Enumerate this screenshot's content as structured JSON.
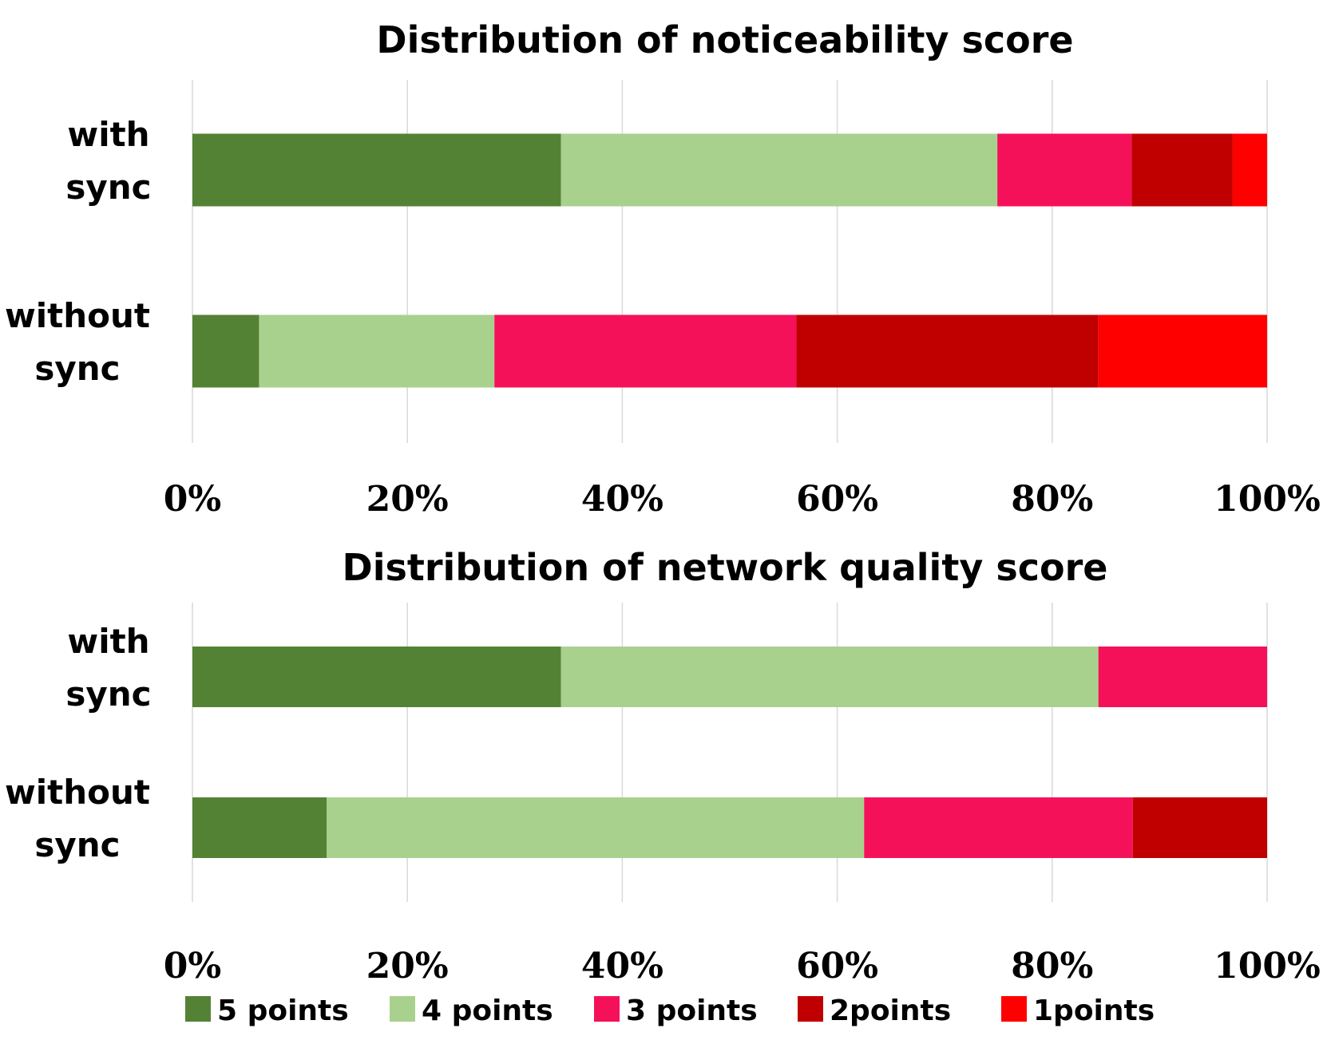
{
  "chart_data": [
    {
      "type": "bar",
      "orientation": "horizontal",
      "stacked": "percent",
      "title": "Distribution of noticeability score",
      "categories": [
        "with sync",
        "without sync"
      ],
      "series": [
        {
          "name": "5 points",
          "values": [
            34.3,
            6.2
          ]
        },
        {
          "name": "4 points",
          "values": [
            40.6,
            21.9
          ]
        },
        {
          "name": "3 points",
          "values": [
            12.5,
            28.1
          ]
        },
        {
          "name": "2points",
          "values": [
            9.4,
            28.1
          ]
        },
        {
          "name": "1points",
          "values": [
            3.2,
            15.7
          ]
        }
      ],
      "xlim": [
        0,
        100
      ],
      "xticks": [
        "0%",
        "20%",
        "40%",
        "60%",
        "80%",
        "100%"
      ],
      "grid": true
    },
    {
      "type": "bar",
      "orientation": "horizontal",
      "stacked": "percent",
      "title": "Distribution of network quality score",
      "categories": [
        "with sync",
        "without sync"
      ],
      "series": [
        {
          "name": "5 points",
          "values": [
            34.3,
            12.5
          ]
        },
        {
          "name": "4 points",
          "values": [
            50.0,
            50.0
          ]
        },
        {
          "name": "3 points",
          "values": [
            15.7,
            25.0
          ]
        },
        {
          "name": "2points",
          "values": [
            0,
            12.5
          ]
        },
        {
          "name": "1points",
          "values": [
            0,
            0
          ]
        }
      ],
      "xlim": [
        0,
        100
      ],
      "xticks": [
        "0%",
        "20%",
        "40%",
        "60%",
        "80%",
        "100%"
      ],
      "grid": true
    }
  ],
  "colors": [
    "#548235",
    "#a9d18e",
    "#f5115a",
    "#c00000",
    "#ff0000"
  ],
  "legend": {
    "position": "bottom",
    "items": [
      "5 points",
      "4 points",
      "3 points",
      "2points",
      "1points"
    ]
  }
}
